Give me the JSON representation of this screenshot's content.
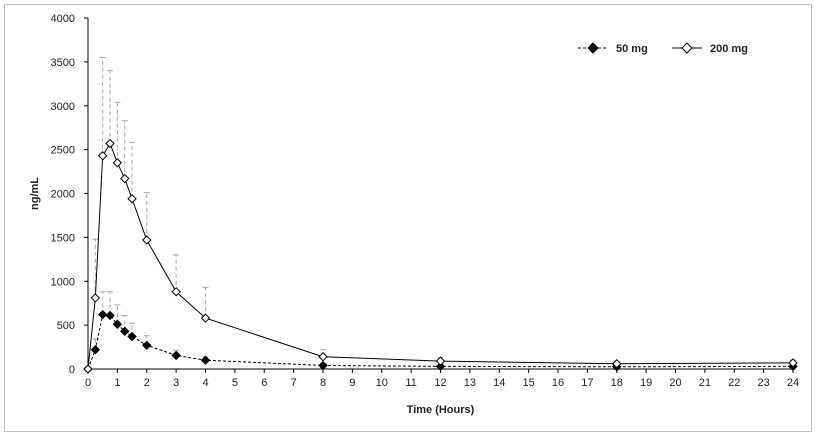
{
  "chart_data": {
    "type": "line",
    "title": "",
    "xlabel": "Time (Hours)",
    "ylabel": "ng/mL",
    "xlim": [
      0,
      24
    ],
    "ylim": [
      0,
      4000
    ],
    "x_ticks": [
      "0",
      "1",
      "2",
      "3",
      "4",
      "5",
      "6",
      "7",
      "8",
      "9",
      "10",
      "11",
      "12",
      "13",
      "14",
      "15",
      "16",
      "17",
      "18",
      "19",
      "20",
      "21",
      "22",
      "23",
      "24"
    ],
    "y_ticks": [
      "0",
      "500",
      "1000",
      "1500",
      "2000",
      "2500",
      "3000",
      "3500",
      "4000"
    ],
    "grid": false,
    "legend_position": "top-right",
    "series": [
      {
        "name": "50 mg",
        "marker": "filled-diamond",
        "line_style": "dashed",
        "color": "#000000",
        "x": [
          0,
          0.25,
          0.5,
          0.75,
          1,
          1.25,
          1.5,
          2,
          3,
          4,
          8,
          12,
          18,
          24
        ],
        "y": [
          0,
          220,
          620,
          610,
          510,
          430,
          370,
          270,
          155,
          100,
          40,
          30,
          25,
          30
        ],
        "error": [
          0,
          120,
          260,
          270,
          220,
          180,
          150,
          110,
          60,
          40,
          15,
          10,
          8,
          10
        ]
      },
      {
        "name": "200 mg",
        "marker": "open-diamond",
        "line_style": "solid",
        "color": "#000000",
        "x": [
          0,
          0.25,
          0.5,
          0.75,
          1,
          1.25,
          1.5,
          2,
          3,
          4,
          8,
          12,
          18,
          24
        ],
        "y": [
          0,
          810,
          2430,
          2570,
          2350,
          2170,
          1940,
          1470,
          880,
          580,
          140,
          90,
          60,
          70
        ],
        "error": [
          0,
          670,
          1120,
          830,
          690,
          660,
          640,
          540,
          420,
          350,
          80,
          40,
          30,
          30
        ]
      }
    ],
    "error_bar_color": "#a6a6a6"
  }
}
